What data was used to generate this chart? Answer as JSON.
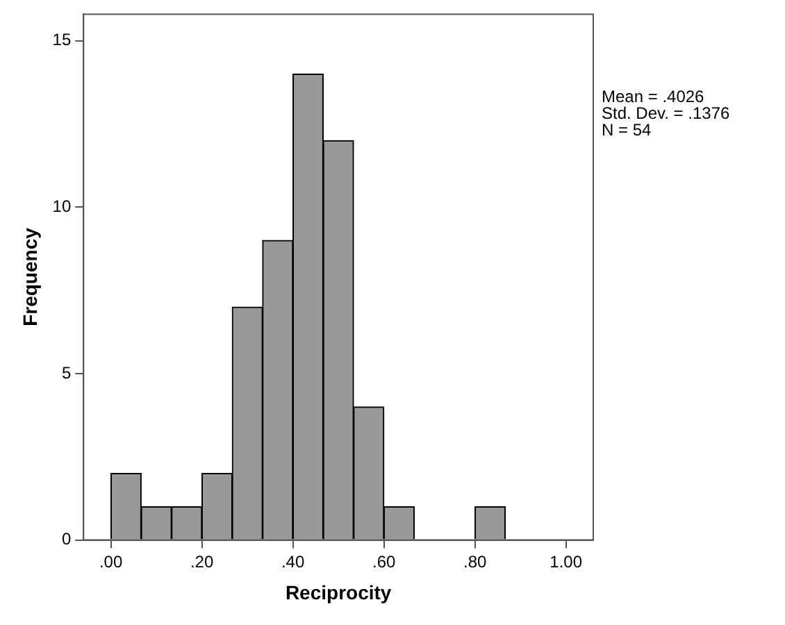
{
  "chart_data": {
    "type": "histogram",
    "xlabel": "Reciprocity",
    "ylabel": "Frequency",
    "bins": [
      0,
      0.0667,
      0.1333,
      0.2,
      0.2667,
      0.3333,
      0.4,
      0.4667,
      0.5333,
      0.6,
      0.6667,
      0.7333,
      0.8,
      0.8667
    ],
    "values": [
      2,
      1,
      1,
      2,
      7,
      9,
      14,
      12,
      4,
      1,
      0,
      0,
      1
    ],
    "color": "#999999",
    "xlim": [
      -0.06,
      1.06
    ],
    "xticks": [
      {
        "value": 0,
        "label": ".00"
      },
      {
        "value": 0.2,
        "label": ".20"
      },
      {
        "value": 0.4,
        "label": ".40"
      },
      {
        "value": 0.6,
        "label": ".60"
      },
      {
        "value": 0.8,
        "label": ".80"
      },
      {
        "value": 1,
        "label": "1.00"
      }
    ],
    "ylim": [
      0,
      15.8
    ],
    "yticks": [
      0,
      5,
      10,
      15
    ],
    "grid": false,
    "legend": false,
    "annotations": [
      "Mean = .4026",
      "Std. Dev. = .1376",
      "N = 54"
    ]
  }
}
